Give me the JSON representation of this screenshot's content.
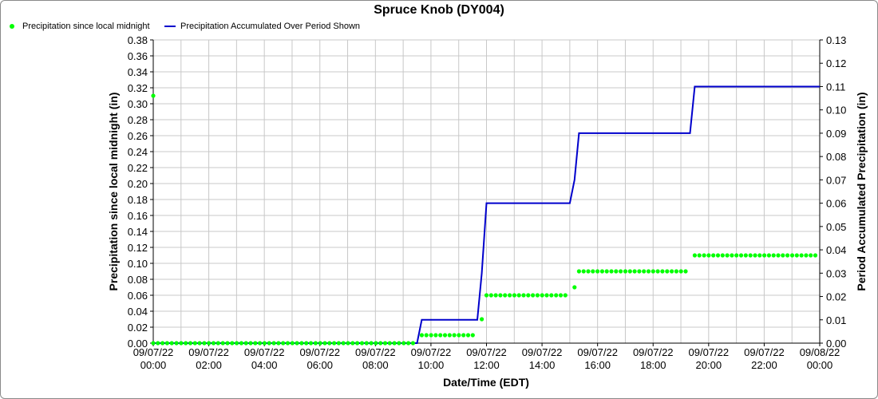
{
  "chart_data": {
    "type": "line",
    "title": "Spruce Knob (DY004)",
    "xlabel": "Date/Time (EDT)",
    "ylabel": "Precipitation since local midnight (in)",
    "y2label": "Period Accumulated Precipitation (in)",
    "x_ticks": [
      {
        "date": "09/07/22",
        "time": "00:00"
      },
      {
        "date": "09/07/22",
        "time": "02:00"
      },
      {
        "date": "09/07/22",
        "time": "04:00"
      },
      {
        "date": "09/07/22",
        "time": "06:00"
      },
      {
        "date": "09/07/22",
        "time": "08:00"
      },
      {
        "date": "09/07/22",
        "time": "10:00"
      },
      {
        "date": "09/07/22",
        "time": "12:00"
      },
      {
        "date": "09/07/22",
        "time": "14:00"
      },
      {
        "date": "09/07/22",
        "time": "16:00"
      },
      {
        "date": "09/07/22",
        "time": "18:00"
      },
      {
        "date": "09/07/22",
        "time": "20:00"
      },
      {
        "date": "09/07/22",
        "time": "22:00"
      },
      {
        "date": "09/08/22",
        "time": "00:00"
      }
    ],
    "xlim_hours": [
      0,
      24
    ],
    "ylim": [
      0,
      0.38
    ],
    "y2lim": [
      0,
      0.13
    ],
    "yticks": [
      "0.00",
      "0.02",
      "0.04",
      "0.06",
      "0.08",
      "0.10",
      "0.12",
      "0.14",
      "0.16",
      "0.18",
      "0.20",
      "0.22",
      "0.24",
      "0.26",
      "0.28",
      "0.30",
      "0.32",
      "0.34",
      "0.36",
      "0.38"
    ],
    "y2ticks": [
      "0.00",
      "0.01",
      "0.02",
      "0.03",
      "0.04",
      "0.05",
      "0.06",
      "0.07",
      "0.08",
      "0.09",
      "0.10",
      "0.11",
      "0.12",
      "0.13"
    ],
    "grid": true,
    "legend_position": "top-left",
    "series": [
      {
        "name": "Precipitation since local midnight",
        "kind": "points",
        "axis": "left",
        "color": "#00ff00",
        "segments": [
          {
            "from": 0.0,
            "to": 9.5,
            "step": 0.167,
            "value": 0.0
          },
          {
            "from": 9.67,
            "to": 11.67,
            "step": 0.167,
            "value": 0.01
          },
          {
            "from": 11.83,
            "to": 11.83,
            "step": 0.167,
            "value": 0.03
          },
          {
            "from": 12.0,
            "to": 15.0,
            "step": 0.167,
            "value": 0.06
          },
          {
            "from": 15.17,
            "to": 15.17,
            "step": 0.167,
            "value": 0.07
          },
          {
            "from": 15.33,
            "to": 19.33,
            "step": 0.167,
            "value": 0.09
          },
          {
            "from": 19.5,
            "to": 24.0,
            "step": 0.167,
            "value": 0.11
          }
        ],
        "extra_points": [
          {
            "x": 0.0,
            "y": 0.31
          }
        ]
      },
      {
        "name": "Precipitation Accumulated Over Period Shown",
        "kind": "line",
        "axis": "right",
        "color": "#0000cc",
        "points": [
          {
            "x": 0.0,
            "y": 0.0
          },
          {
            "x": 9.5,
            "y": 0.0
          },
          {
            "x": 9.67,
            "y": 0.01
          },
          {
            "x": 11.67,
            "y": 0.01
          },
          {
            "x": 11.83,
            "y": 0.03
          },
          {
            "x": 12.0,
            "y": 0.06
          },
          {
            "x": 15.0,
            "y": 0.06
          },
          {
            "x": 15.17,
            "y": 0.07
          },
          {
            "x": 15.33,
            "y": 0.09
          },
          {
            "x": 19.33,
            "y": 0.09
          },
          {
            "x": 19.5,
            "y": 0.11
          },
          {
            "x": 24.0,
            "y": 0.11
          }
        ]
      }
    ]
  }
}
